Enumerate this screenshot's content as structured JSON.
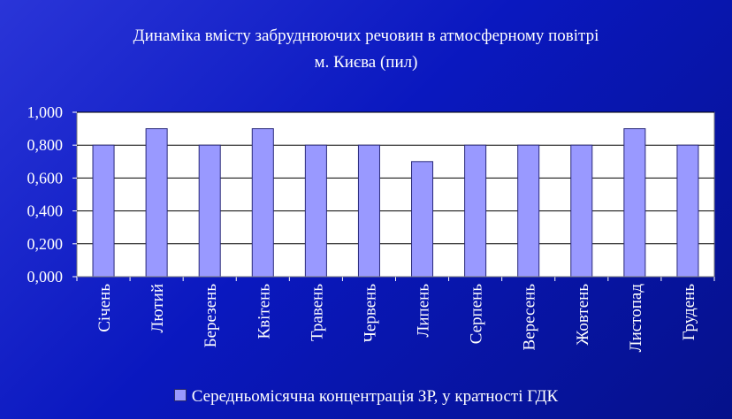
{
  "chart_data": {
    "type": "bar",
    "title_line1": "Динаміка вмісту забруднюючих речовин в атмосферному повітрі",
    "title_line2": "м. Києва (пил)",
    "categories": [
      "Січень",
      "Лютий",
      "Березень",
      "Квітень",
      "Травень",
      "Червень",
      "Липень",
      "Серпень",
      "Вересень",
      "Жовтень",
      "Листопад",
      "Грудень"
    ],
    "series": [
      {
        "name": "Середньомісячна концентрація ЗР, у кратності ГДК",
        "values": [
          0.8,
          0.9,
          0.8,
          0.9,
          0.8,
          0.8,
          0.7,
          0.8,
          0.8,
          0.8,
          0.9,
          0.8
        ]
      }
    ],
    "ylim": [
      0,
      1
    ],
    "yticks": [
      "0,000",
      "0,200",
      "0,400",
      "0,600",
      "0,800",
      "1,000"
    ],
    "grid": true,
    "legend_position": "bottom",
    "colors": {
      "bar_fill": "#9999ff",
      "bar_stroke": "#2a2a7a",
      "plot_background": "#ffffff",
      "background": "#0a18bf",
      "text": "#ffffff"
    }
  }
}
